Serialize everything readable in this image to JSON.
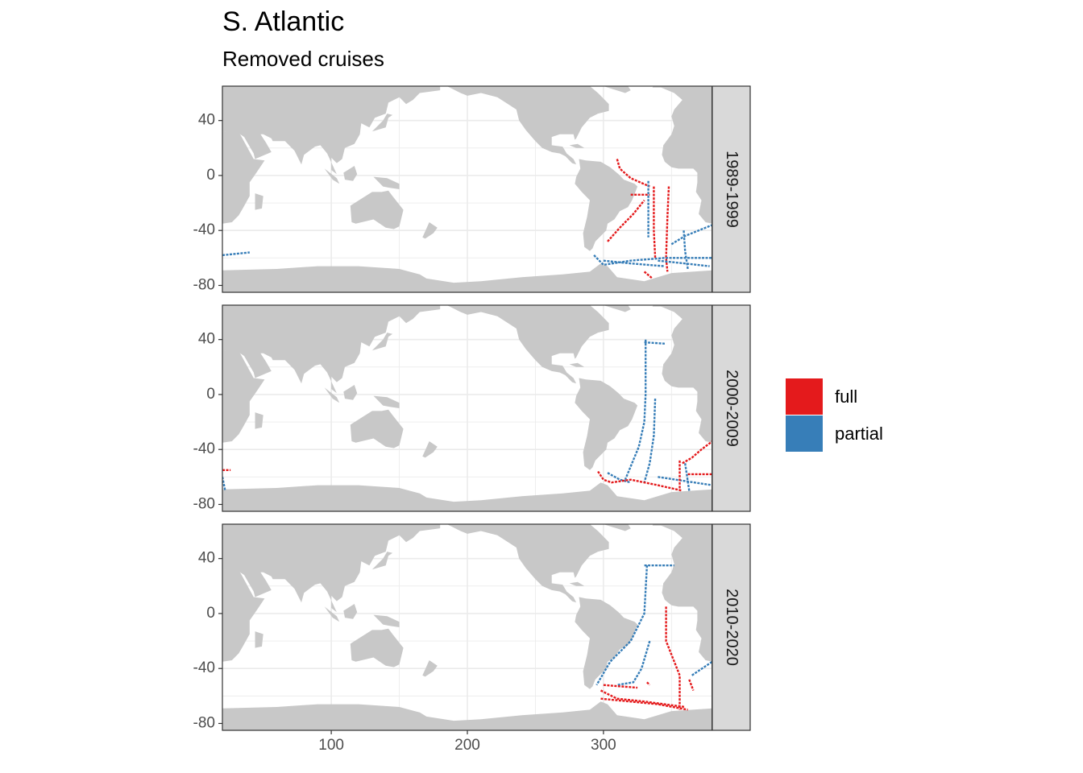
{
  "title": "S. Atlantic",
  "subtitle": "Removed cruises",
  "colors": {
    "land": "#c8c8c8",
    "grid": "#ebebeb",
    "strip": "#d9d9d9",
    "full": "#e41a1c",
    "partial": "#377eb8"
  },
  "axes": {
    "x": {
      "min": 20,
      "max": 380,
      "ticks": [
        100,
        200,
        300
      ]
    },
    "y": {
      "min": -85,
      "max": 65,
      "ticks": [
        40,
        0,
        -40,
        -80
      ]
    },
    "tick_labels_x": [
      "100",
      "200",
      "300"
    ],
    "tick_labels_y": [
      "40",
      "0",
      "-40",
      "-80"
    ]
  },
  "legend": {
    "items": [
      {
        "key": "full",
        "label": "full"
      },
      {
        "key": "partial",
        "label": "partial"
      }
    ]
  },
  "facets": [
    {
      "label": "1989-1999",
      "tracks": [
        {
          "type": "full",
          "points": [
            [
              310,
              12
            ],
            [
              312,
              5
            ],
            [
              320,
              -2
            ],
            [
              334,
              -8
            ]
          ]
        },
        {
          "type": "full",
          "points": [
            [
              337,
              -8
            ],
            [
              337,
              -40
            ],
            [
              338,
              -60
            ]
          ]
        },
        {
          "type": "full",
          "points": [
            [
              348,
              -8
            ],
            [
              347,
              -30
            ],
            [
              346,
              -60
            ],
            [
              347,
              -70
            ]
          ]
        },
        {
          "type": "full",
          "points": [
            [
              303,
              -48
            ],
            [
              312,
              -38
            ],
            [
              322,
              -28
            ],
            [
              330,
              -18
            ]
          ]
        },
        {
          "type": "full",
          "points": [
            [
              320,
              -14
            ],
            [
              334,
              -14
            ]
          ]
        },
        {
          "type": "full",
          "points": [
            [
              330,
              -70
            ],
            [
              336,
              -75
            ]
          ]
        },
        {
          "type": "partial",
          "points": [
            [
              333,
              -4
            ],
            [
              333,
              -45
            ]
          ]
        },
        {
          "type": "partial",
          "points": [
            [
              293,
              -58
            ],
            [
              300,
              -65
            ],
            [
              320,
              -62
            ],
            [
              345,
              -60
            ],
            [
              380,
              -60
            ]
          ]
        },
        {
          "type": "partial",
          "points": [
            [
              300,
              -62
            ],
            [
              320,
              -64
            ],
            [
              345,
              -66
            ]
          ]
        },
        {
          "type": "partial",
          "points": [
            [
              350,
              -50
            ],
            [
              360,
              -44
            ],
            [
              380,
              -36
            ]
          ]
        },
        {
          "type": "partial",
          "points": [
            [
              359,
              -40
            ],
            [
              360,
              -55
            ],
            [
              362,
              -68
            ]
          ]
        },
        {
          "type": "partial",
          "points": [
            [
              340,
              -62
            ],
            [
              360,
              -64
            ],
            [
              378,
              -66
            ]
          ]
        },
        {
          "type": "partial",
          "points": [
            [
              20,
              -58
            ],
            [
              40,
              -56
            ]
          ]
        }
      ]
    },
    {
      "label": "2000-2009",
      "tracks": [
        {
          "type": "partial",
          "points": [
            [
              331,
              40
            ],
            [
              331,
              0
            ],
            [
              330,
              -20
            ],
            [
              326,
              -38
            ],
            [
              316,
              -62
            ]
          ]
        },
        {
          "type": "partial",
          "points": [
            [
              338,
              -3
            ],
            [
              337,
              -30
            ],
            [
              334,
              -50
            ],
            [
              330,
              -64
            ]
          ]
        },
        {
          "type": "partial",
          "points": [
            [
              303,
              -57
            ],
            [
              312,
              -62
            ],
            [
              320,
              -64
            ]
          ]
        },
        {
          "type": "partial",
          "points": [
            [
              330,
              38
            ],
            [
              345,
              37
            ]
          ]
        },
        {
          "type": "partial",
          "points": [
            [
              360,
              -50
            ],
            [
              363,
              -70
            ]
          ]
        },
        {
          "type": "partial",
          "points": [
            [
              340,
              -60
            ],
            [
              380,
              -66
            ]
          ]
        },
        {
          "type": "partial",
          "points": [
            [
              20,
              -60
            ],
            [
              22,
              -70
            ]
          ]
        },
        {
          "type": "full",
          "points": [
            [
              296,
              -56
            ],
            [
              300,
              -62
            ],
            [
              306,
              -64
            ],
            [
              320,
              -62
            ],
            [
              340,
              -66
            ],
            [
              358,
              -70
            ]
          ]
        },
        {
          "type": "full",
          "points": [
            [
              358,
              -50
            ],
            [
              365,
              -46
            ],
            [
              372,
              -40
            ],
            [
              380,
              -34
            ]
          ]
        },
        {
          "type": "full",
          "points": [
            [
              356,
              -48
            ],
            [
              356,
              -70
            ]
          ]
        },
        {
          "type": "full",
          "points": [
            [
              362,
              -58
            ],
            [
              380,
              -58
            ]
          ]
        },
        {
          "type": "full",
          "points": [
            [
              20,
              -55
            ],
            [
              26,
              -55
            ]
          ]
        }
      ]
    },
    {
      "label": "2010-2020",
      "tracks": [
        {
          "type": "partial",
          "points": [
            [
              332,
              35
            ],
            [
              330,
              0
            ],
            [
              320,
              -20
            ],
            [
              305,
              -35
            ],
            [
              295,
              -52
            ]
          ]
        },
        {
          "type": "partial",
          "points": [
            [
              334,
              -20
            ],
            [
              328,
              -40
            ],
            [
              322,
              -50
            ],
            [
              310,
              -52
            ]
          ]
        },
        {
          "type": "partial",
          "points": [
            [
              330,
              35
            ],
            [
              352,
              35
            ]
          ]
        },
        {
          "type": "partial",
          "points": [
            [
              365,
              -45
            ],
            [
              380,
              -35
            ]
          ]
        },
        {
          "type": "full",
          "points": [
            [
              298,
              -56
            ],
            [
              310,
              -62
            ],
            [
              330,
              -64
            ],
            [
              360,
              -68
            ]
          ]
        },
        {
          "type": "full",
          "points": [
            [
              300,
              -52
            ],
            [
              325,
              -54
            ]
          ]
        },
        {
          "type": "full",
          "points": [
            [
              346,
              5
            ],
            [
              346,
              -20
            ],
            [
              356,
              -45
            ],
            [
              356,
              -70
            ]
          ]
        },
        {
          "type": "full",
          "points": [
            [
              363,
              -48
            ],
            [
              366,
              -56
            ]
          ]
        },
        {
          "type": "full",
          "points": [
            [
              298,
              -62
            ],
            [
              340,
              -66
            ],
            [
              362,
              -70
            ]
          ]
        },
        {
          "type": "full",
          "points": [
            [
              332,
              -50
            ],
            [
              334,
              -52
            ]
          ]
        }
      ]
    }
  ]
}
